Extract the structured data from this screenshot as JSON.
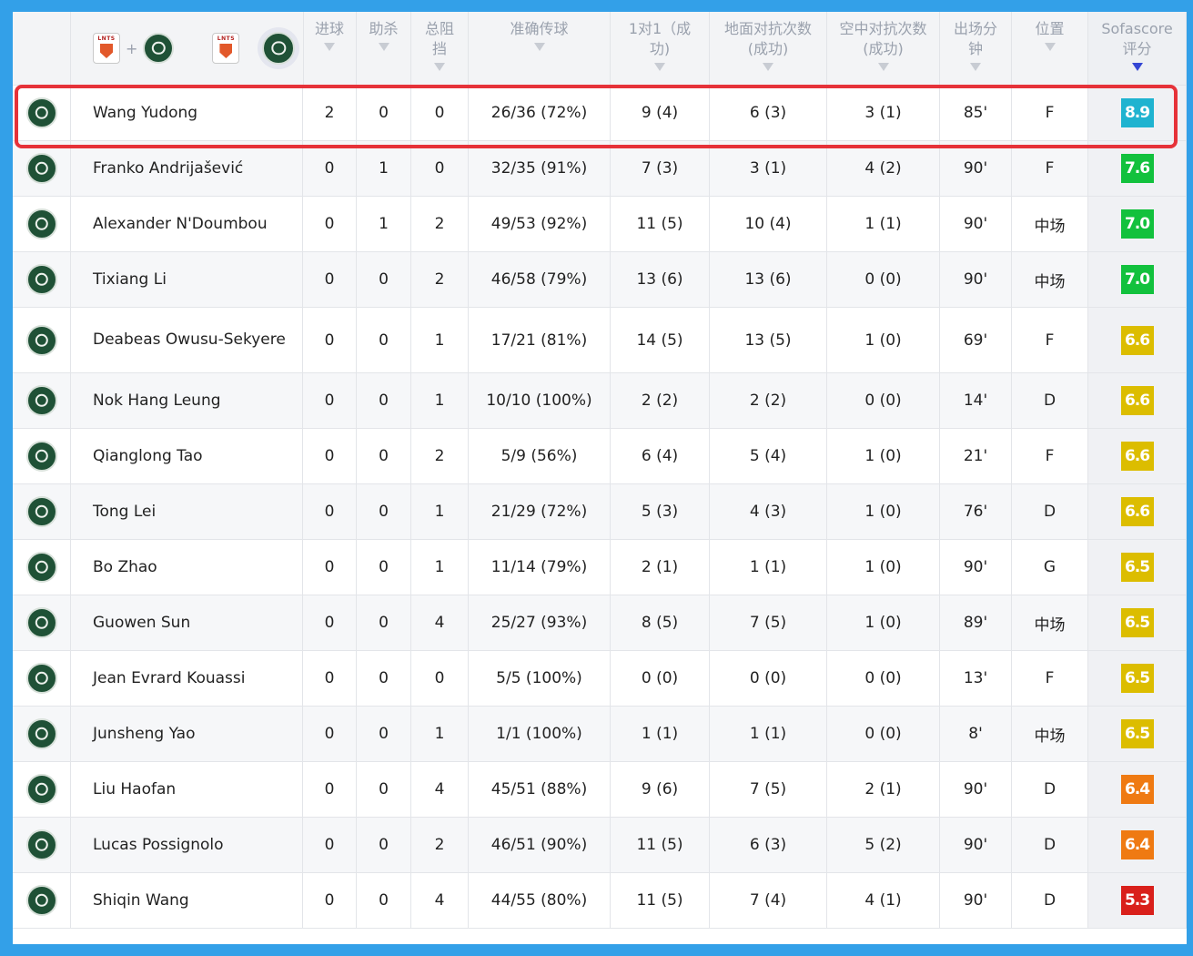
{
  "header": {
    "columns": [
      {
        "key": "goals",
        "label": "进球"
      },
      {
        "key": "assists",
        "label": "助杀"
      },
      {
        "key": "blocks",
        "label": "总阻\n挡"
      },
      {
        "key": "passes",
        "label": "准确传球"
      },
      {
        "key": "duels",
        "label": "1对1（成\n功)"
      },
      {
        "key": "ground",
        "label": "地面对抗次数\n(成功)"
      },
      {
        "key": "aerial",
        "label": "空中对抗次数\n(成功)"
      },
      {
        "key": "minutes",
        "label": "出场分\n钟"
      },
      {
        "key": "position",
        "label": "位置"
      },
      {
        "key": "rating",
        "label": "Sofascore\n评分"
      }
    ],
    "team_a_abbr": "LNTS",
    "plus": "+"
  },
  "colors": {
    "rating_blue": "#1fb3d0",
    "rating_green": "#12c13d",
    "rating_yellow": "#dcbd00",
    "rating_orange": "#ef7a12",
    "rating_red": "#d9201b",
    "highlight": "#e63239",
    "background": "#33a0e8"
  },
  "players": [
    {
      "name": "Wang Yudong",
      "goals": "2",
      "assists": "0",
      "blocks": "0",
      "passes": "26/36 (72%)",
      "duels": "9 (4)",
      "ground": "6 (3)",
      "aerial": "3 (1)",
      "minutes": "85'",
      "position": "F",
      "rating": "8.9",
      "rating_color": "#1fb3d0"
    },
    {
      "name": "Franko Andrijašević",
      "goals": "0",
      "assists": "1",
      "blocks": "0",
      "passes": "32/35 (91%)",
      "duels": "7 (3)",
      "ground": "3 (1)",
      "aerial": "4 (2)",
      "minutes": "90'",
      "position": "F",
      "rating": "7.6",
      "rating_color": "#12c13d"
    },
    {
      "name": "Alexander N'Doumbou",
      "goals": "0",
      "assists": "1",
      "blocks": "2",
      "passes": "49/53 (92%)",
      "duels": "11 (5)",
      "ground": "10 (4)",
      "aerial": "1 (1)",
      "minutes": "90'",
      "position": "中场",
      "rating": "7.0",
      "rating_color": "#12c13d"
    },
    {
      "name": "Tixiang Li",
      "goals": "0",
      "assists": "0",
      "blocks": "2",
      "passes": "46/58 (79%)",
      "duels": "13 (6)",
      "ground": "13 (6)",
      "aerial": "0 (0)",
      "minutes": "90'",
      "position": "中场",
      "rating": "7.0",
      "rating_color": "#12c13d"
    },
    {
      "name": "Deabeas Owusu-Sekyere",
      "goals": "0",
      "assists": "0",
      "blocks": "1",
      "passes": "17/21 (81%)",
      "duels": "14 (5)",
      "ground": "13 (5)",
      "aerial": "1 (0)",
      "minutes": "69'",
      "position": "F",
      "rating": "6.6",
      "rating_color": "#dcbd00"
    },
    {
      "name": "Nok Hang Leung",
      "goals": "0",
      "assists": "0",
      "blocks": "1",
      "passes": "10/10 (100%)",
      "duels": "2 (2)",
      "ground": "2 (2)",
      "aerial": "0 (0)",
      "minutes": "14'",
      "position": "D",
      "rating": "6.6",
      "rating_color": "#dcbd00"
    },
    {
      "name": "Qianglong Tao",
      "goals": "0",
      "assists": "0",
      "blocks": "2",
      "passes": "5/9 (56%)",
      "duels": "6 (4)",
      "ground": "5 (4)",
      "aerial": "1 (0)",
      "minutes": "21'",
      "position": "F",
      "rating": "6.6",
      "rating_color": "#dcbd00"
    },
    {
      "name": "Tong Lei",
      "goals": "0",
      "assists": "0",
      "blocks": "1",
      "passes": "21/29 (72%)",
      "duels": "5 (3)",
      "ground": "4 (3)",
      "aerial": "1 (0)",
      "minutes": "76'",
      "position": "D",
      "rating": "6.6",
      "rating_color": "#dcbd00"
    },
    {
      "name": "Bo Zhao",
      "goals": "0",
      "assists": "0",
      "blocks": "1",
      "passes": "11/14 (79%)",
      "duels": "2 (1)",
      "ground": "1 (1)",
      "aerial": "1 (0)",
      "minutes": "90'",
      "position": "G",
      "rating": "6.5",
      "rating_color": "#dcbd00"
    },
    {
      "name": "Guowen Sun",
      "goals": "0",
      "assists": "0",
      "blocks": "4",
      "passes": "25/27 (93%)",
      "duels": "8 (5)",
      "ground": "7 (5)",
      "aerial": "1 (0)",
      "minutes": "89'",
      "position": "中场",
      "rating": "6.5",
      "rating_color": "#dcbd00"
    },
    {
      "name": "Jean Evrard Kouassi",
      "goals": "0",
      "assists": "0",
      "blocks": "0",
      "passes": "5/5 (100%)",
      "duels": "0 (0)",
      "ground": "0 (0)",
      "aerial": "0 (0)",
      "minutes": "13'",
      "position": "F",
      "rating": "6.5",
      "rating_color": "#dcbd00"
    },
    {
      "name": "Junsheng Yao",
      "goals": "0",
      "assists": "0",
      "blocks": "1",
      "passes": "1/1 (100%)",
      "duels": "1 (1)",
      "ground": "1 (1)",
      "aerial": "0 (0)",
      "minutes": "8'",
      "position": "中场",
      "rating": "6.5",
      "rating_color": "#dcbd00"
    },
    {
      "name": "Liu Haofan",
      "goals": "0",
      "assists": "0",
      "blocks": "4",
      "passes": "45/51 (88%)",
      "duels": "9 (6)",
      "ground": "7 (5)",
      "aerial": "2 (1)",
      "minutes": "90'",
      "position": "D",
      "rating": "6.4",
      "rating_color": "#ef7a12"
    },
    {
      "name": "Lucas Possignolo",
      "goals": "0",
      "assists": "0",
      "blocks": "2",
      "passes": "46/51 (90%)",
      "duels": "11 (5)",
      "ground": "6 (3)",
      "aerial": "5 (2)",
      "minutes": "90'",
      "position": "D",
      "rating": "6.4",
      "rating_color": "#ef7a12"
    },
    {
      "name": "Shiqin Wang",
      "goals": "0",
      "assists": "0",
      "blocks": "4",
      "passes": "44/55 (80%)",
      "duels": "11 (5)",
      "ground": "7 (4)",
      "aerial": "4 (1)",
      "minutes": "90'",
      "position": "D",
      "rating": "5.3",
      "rating_color": "#d9201b"
    }
  ]
}
